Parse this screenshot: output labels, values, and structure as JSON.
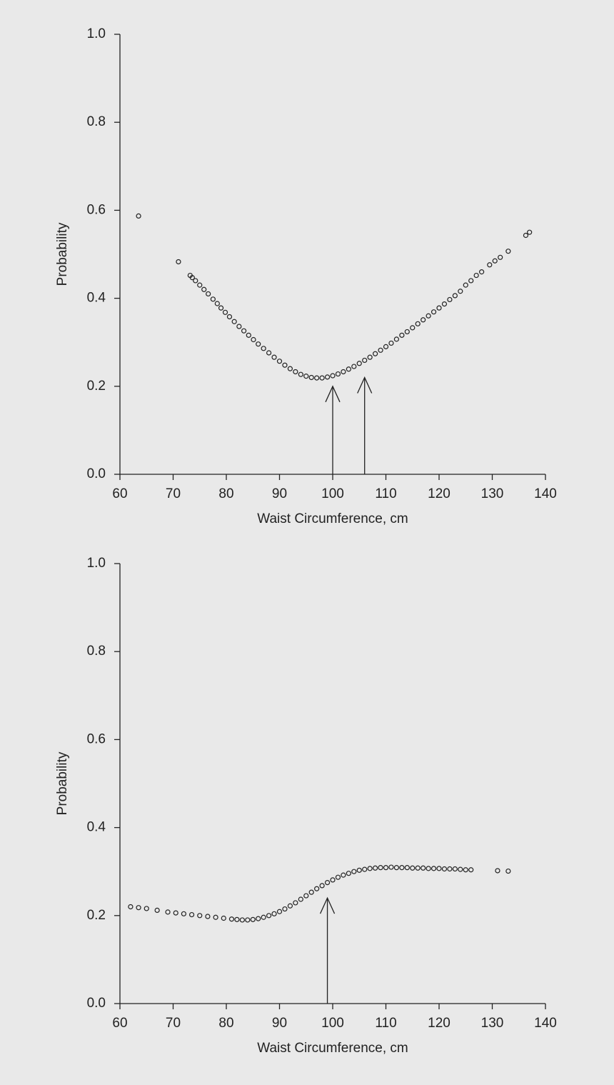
{
  "chart_data": [
    {
      "type": "scatter",
      "xlabel": "Waist Circumference, cm",
      "ylabel": "Probability",
      "color": "#222222",
      "xlim": [
        60,
        140
      ],
      "xticks": [
        60,
        70,
        80,
        90,
        100,
        110,
        120,
        130,
        140
      ],
      "ylim": [
        0,
        1
      ],
      "yticks": [
        {
          "value": 0,
          "label": "0.0"
        },
        0.2,
        0.4,
        0.6,
        0.8,
        {
          "value": 1,
          "label": "1.0"
        }
      ],
      "x": [
        63.5,
        71,
        73.2,
        73.6,
        74.2,
        75,
        75.8,
        76.6,
        77.5,
        78.3,
        79,
        79.8,
        80.6,
        81.5,
        82.4,
        83.3,
        84.2,
        85.1,
        86,
        87,
        88,
        89,
        90,
        91,
        92,
        93,
        94,
        95,
        96,
        97,
        98,
        99,
        100,
        101,
        102,
        103,
        104,
        105,
        106,
        107,
        108,
        109,
        110,
        111,
        112,
        113,
        114,
        115,
        116,
        117,
        118,
        119,
        120,
        121,
        122,
        123,
        124,
        125,
        126,
        127,
        128,
        129.5,
        130.5,
        131.5,
        133,
        136.3,
        137
      ],
      "values": [
        0.587,
        0.483,
        0.452,
        0.447,
        0.44,
        0.43,
        0.42,
        0.41,
        0.398,
        0.388,
        0.378,
        0.368,
        0.358,
        0.347,
        0.336,
        0.326,
        0.316,
        0.306,
        0.296,
        0.286,
        0.276,
        0.266,
        0.257,
        0.248,
        0.24,
        0.233,
        0.227,
        0.223,
        0.22,
        0.219,
        0.219,
        0.221,
        0.224,
        0.228,
        0.233,
        0.239,
        0.245,
        0.252,
        0.259,
        0.266,
        0.274,
        0.282,
        0.29,
        0.298,
        0.307,
        0.316,
        0.324,
        0.333,
        0.342,
        0.351,
        0.36,
        0.369,
        0.378,
        0.387,
        0.397,
        0.406,
        0.416,
        0.43,
        0.44,
        0.452,
        0.46,
        0.476,
        0.485,
        0.493,
        0.507,
        0.543,
        0.55
      ],
      "arrows": [
        {
          "x": 100,
          "y": 0.2
        },
        {
          "x": 106,
          "y": 0.22
        }
      ]
    },
    {
      "type": "scatter",
      "xlabel": "Waist Circumference, cm",
      "ylabel": "Probability",
      "color": "#222222",
      "xlim": [
        60,
        140
      ],
      "xticks": [
        60,
        70,
        80,
        90,
        100,
        110,
        120,
        130,
        140
      ],
      "ylim": [
        0,
        1
      ],
      "yticks": [
        {
          "value": 0,
          "label": "0.0"
        },
        0.2,
        0.4,
        0.6,
        0.8,
        {
          "value": 1,
          "label": "1.0"
        }
      ],
      "x": [
        62,
        63.5,
        65,
        67,
        69,
        70.5,
        72,
        73.5,
        75,
        76.5,
        78,
        79.5,
        81,
        82,
        83,
        84,
        85,
        86,
        87,
        88,
        89,
        90,
        91,
        92,
        93,
        94,
        95,
        96,
        97,
        98,
        99,
        100,
        101,
        102,
        103,
        104,
        105,
        106,
        107,
        108,
        109,
        110,
        111,
        112,
        113,
        114,
        115,
        116,
        117,
        118,
        119,
        120,
        121,
        122,
        123,
        124,
        125,
        126,
        131,
        133
      ],
      "values": [
        0.22,
        0.218,
        0.216,
        0.212,
        0.208,
        0.206,
        0.204,
        0.202,
        0.2,
        0.198,
        0.196,
        0.194,
        0.192,
        0.191,
        0.19,
        0.19,
        0.191,
        0.193,
        0.196,
        0.2,
        0.204,
        0.209,
        0.215,
        0.222,
        0.229,
        0.237,
        0.245,
        0.253,
        0.261,
        0.268,
        0.275,
        0.281,
        0.287,
        0.292,
        0.296,
        0.3,
        0.303,
        0.305,
        0.307,
        0.308,
        0.309,
        0.309,
        0.31,
        0.309,
        0.309,
        0.309,
        0.308,
        0.308,
        0.308,
        0.307,
        0.307,
        0.307,
        0.306,
        0.306,
        0.306,
        0.305,
        0.304,
        0.304,
        0.302,
        0.301
      ],
      "arrows": [
        {
          "x": 99,
          "y": 0.24
        }
      ]
    }
  ]
}
